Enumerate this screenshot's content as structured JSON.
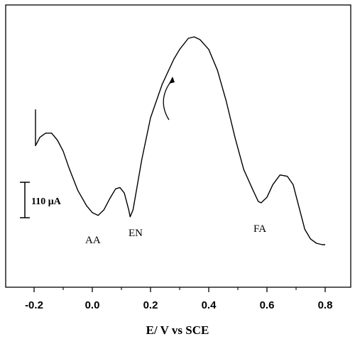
{
  "chart_data": {
    "type": "line",
    "title": "",
    "xlabel": "E/ V vs SCE",
    "ylabel": "",
    "xlim": [
      -0.27,
      0.88
    ],
    "x_ticks": [
      -0.2,
      0.0,
      0.2,
      0.4,
      0.6,
      0.8
    ],
    "x_tick_labels": [
      "-0.2",
      "0.0",
      "0.2",
      "0.4",
      "0.6",
      "0.8"
    ],
    "grid": false,
    "series": [
      {
        "x": [
          -0.195,
          -0.195,
          -0.19,
          -0.18,
          -0.16,
          -0.14,
          -0.12,
          -0.1,
          -0.08,
          -0.05,
          -0.02,
          0.0,
          0.02,
          0.04,
          0.06,
          0.08,
          0.095,
          0.11,
          0.125,
          0.13,
          0.14,
          0.15,
          0.17,
          0.2,
          0.24,
          0.28,
          0.3,
          0.33,
          0.35,
          0.37,
          0.4,
          0.43,
          0.46,
          0.49,
          0.52,
          0.55,
          0.57,
          0.58,
          0.6,
          0.62,
          0.645,
          0.67,
          0.69,
          0.71,
          0.73,
          0.75,
          0.77,
          0.79,
          0.8
        ],
        "y": [
          0.74,
          0.61,
          0.62,
          0.64,
          0.655,
          0.655,
          0.63,
          0.59,
          0.53,
          0.45,
          0.395,
          0.37,
          0.36,
          0.38,
          0.42,
          0.455,
          0.46,
          0.44,
          0.38,
          0.355,
          0.38,
          0.44,
          0.56,
          0.71,
          0.83,
          0.92,
          0.955,
          0.995,
          1.0,
          0.99,
          0.955,
          0.88,
          0.77,
          0.64,
          0.525,
          0.455,
          0.41,
          0.405,
          0.425,
          0.47,
          0.505,
          0.5,
          0.47,
          0.39,
          0.31,
          0.275,
          0.26,
          0.255,
          0.255
        ]
      }
    ],
    "annotations": [
      "AA",
      "EN",
      "FA"
    ],
    "scale_bar_label": "110 μA"
  }
}
